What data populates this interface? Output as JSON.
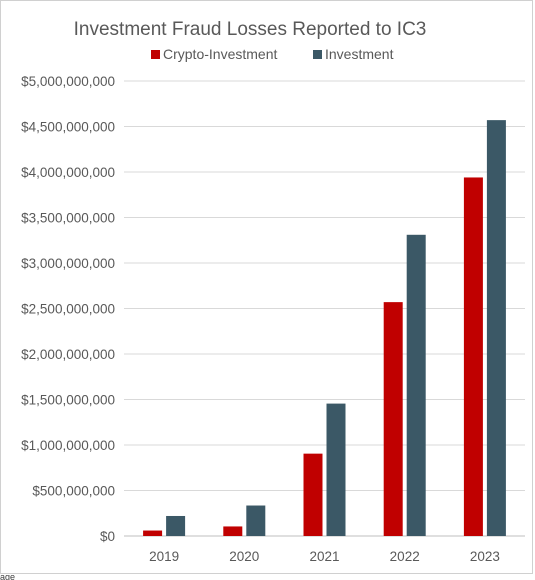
{
  "chart_data": {
    "type": "bar",
    "title": "Investment Fraud Losses Reported to IC3",
    "categories": [
      "2019",
      "2020",
      "2021",
      "2022",
      "2023"
    ],
    "series": [
      {
        "name": "Crypto-Investment",
        "color": "#c00000",
        "values": [
          60000000,
          105000000,
          905000000,
          2570000000,
          3940000000
        ]
      },
      {
        "name": "Investment",
        "color": "#3b5866",
        "values": [
          220000000,
          335000000,
          1455000000,
          3310000000,
          4570000000
        ]
      }
    ],
    "yticks": [
      "$0",
      "$500,000,000",
      "$1,000,000,000",
      "$1,500,000,000",
      "$2,000,000,000",
      "$2,500,000,000",
      "$3,000,000,000",
      "$3,500,000,000",
      "$4,000,000,000",
      "$4,500,000,000",
      "$5,000,000,000"
    ],
    "ylim": [
      0,
      5000000000
    ],
    "xlabel": "",
    "ylabel": "",
    "grid": true,
    "legend_position": "top"
  },
  "footer_fragment": "age"
}
